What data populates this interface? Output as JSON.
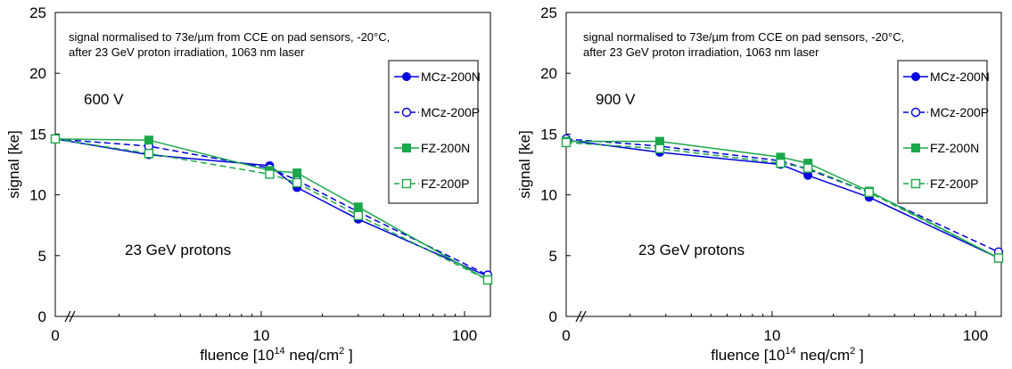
{
  "chart_data": [
    {
      "type": "line",
      "xlabel_main": "fluence [10",
      "xlabel_exp": "14",
      "xlabel_rest": " neq/cm",
      "xlabel_exp2": "2",
      "xlabel_end": " ]",
      "ylabel": "signal [ke]",
      "x_scale": "log with break at 0",
      "x_ticks": [
        "0",
        "10",
        "100"
      ],
      "y_ticks": [
        "0",
        "5",
        "10",
        "15",
        "20",
        "25"
      ],
      "ylim": [
        0,
        25
      ],
      "xlim_log": [
        0.5,
        130
      ],
      "note_line1": "signal normalised to 73e/µm from CCE on pad sensors, -20°C,",
      "note_line2": "after 23 GeV proton irradiation, 1063 nm laser",
      "voltage_label": "600 V",
      "particle_label": "23 GeV protons",
      "legend_position": "top-right",
      "series": [
        {
          "name": "MCz-200N",
          "color": "#0000e0",
          "marker": "filled-circle",
          "dash": false,
          "x": [
            0,
            2.8,
            11,
            15,
            30,
            130
          ],
          "y": [
            14.6,
            13.3,
            12.4,
            10.6,
            8.0,
            3.3
          ]
        },
        {
          "name": "MCz-200P",
          "color": "#0000e0",
          "marker": "open-circle",
          "dash": true,
          "x": [
            0,
            2.8,
            11,
            15,
            30,
            130
          ],
          "y": [
            14.6,
            14.0,
            12.2,
            11.2,
            8.6,
            3.4
          ]
        },
        {
          "name": "FZ-200N",
          "color": "#1aa84a",
          "marker": "filled-square",
          "dash": false,
          "x": [
            0,
            2.8,
            11,
            15,
            30,
            130
          ],
          "y": [
            14.6,
            14.5,
            12.0,
            11.8,
            9.0,
            3.0
          ]
        },
        {
          "name": "FZ-200P",
          "color": "#1aa84a",
          "marker": "open-square",
          "dash": true,
          "x": [
            0,
            2.8,
            11,
            15,
            30,
            130
          ],
          "y": [
            14.6,
            13.4,
            11.7,
            11.0,
            8.3,
            3.0
          ]
        }
      ]
    },
    {
      "type": "line",
      "xlabel_main": "fluence [10",
      "xlabel_exp": "14",
      "xlabel_rest": " neq/cm",
      "xlabel_exp2": "2",
      "xlabel_end": " ]",
      "ylabel": "signal [ke]",
      "x_scale": "log with break at 0",
      "x_ticks": [
        "0",
        "10",
        "100"
      ],
      "y_ticks": [
        "0",
        "5",
        "10",
        "15",
        "20",
        "25"
      ],
      "ylim": [
        0,
        25
      ],
      "xlim_log": [
        0.5,
        130
      ],
      "note_line1": "signal normalised to 73e/µm from CCE on pad sensors, -20°C,",
      "note_line2": "after 23 GeV proton irradiation, 1063 nm laser",
      "voltage_label": "900 V",
      "particle_label": "23 GeV protons",
      "legend_position": "top-right",
      "series": [
        {
          "name": "MCz-200N",
          "color": "#0000e0",
          "marker": "filled-circle",
          "dash": false,
          "x": [
            0,
            2.8,
            11,
            15,
            30,
            130
          ],
          "y": [
            14.5,
            13.5,
            12.5,
            11.6,
            9.8,
            4.8
          ]
        },
        {
          "name": "MCz-200P",
          "color": "#0000e0",
          "marker": "open-circle",
          "dash": true,
          "x": [
            0,
            2.8,
            11,
            15,
            30,
            130
          ],
          "y": [
            14.6,
            14.0,
            12.8,
            12.1,
            10.2,
            5.3
          ]
        },
        {
          "name": "FZ-200N",
          "color": "#1aa84a",
          "marker": "filled-square",
          "dash": false,
          "x": [
            0,
            2.8,
            11,
            15,
            30,
            130
          ],
          "y": [
            14.4,
            14.4,
            13.1,
            12.6,
            10.3,
            4.8
          ]
        },
        {
          "name": "FZ-200P",
          "color": "#1aa84a",
          "marker": "open-square",
          "dash": true,
          "x": [
            0,
            2.8,
            11,
            15,
            30,
            130
          ],
          "y": [
            14.3,
            13.8,
            12.6,
            12.2,
            10.2,
            4.8
          ]
        }
      ]
    }
  ]
}
